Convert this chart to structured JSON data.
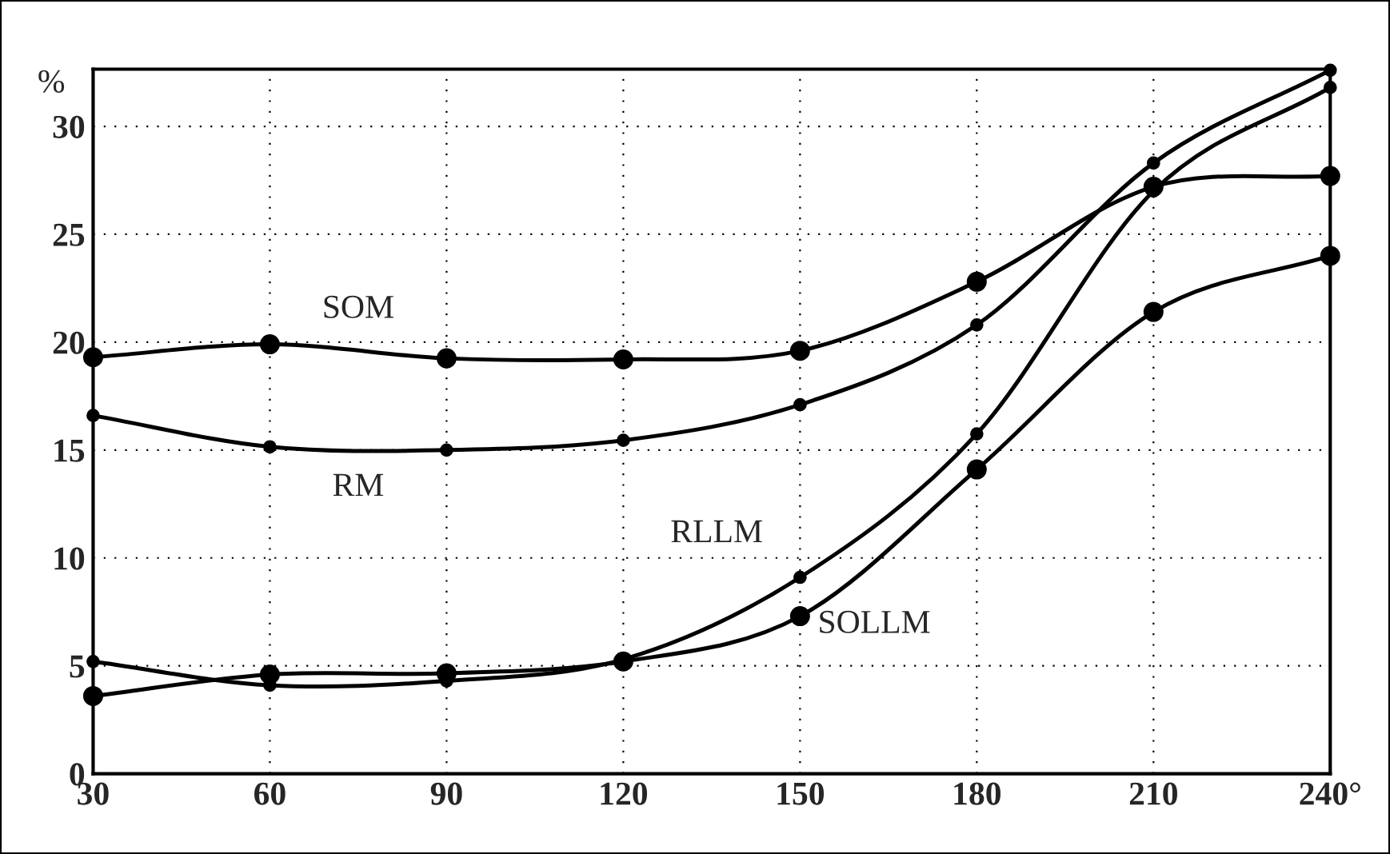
{
  "chart_data": {
    "type": "line",
    "ylabel": "%",
    "x": [
      30,
      60,
      90,
      120,
      150,
      180,
      210,
      240
    ],
    "series": [
      {
        "name": "SOM",
        "color": "#000000",
        "marker": "circle",
        "values": [
          19.3,
          19.9,
          19.25,
          19.2,
          19.6,
          22.8,
          27.2,
          27.7
        ]
      },
      {
        "name": "RM",
        "color": "#000000",
        "marker": "circle",
        "values": [
          16.6,
          15.15,
          15.0,
          15.45,
          17.1,
          20.8,
          28.3,
          32.6
        ]
      },
      {
        "name": "RLLM",
        "color": "#000000",
        "marker": "circle",
        "values": [
          5.2,
          4.1,
          4.3,
          5.3,
          9.1,
          15.75,
          27.0,
          31.8
        ]
      },
      {
        "name": "SOLLM",
        "color": "#000000",
        "marker": "circle",
        "values": [
          3.6,
          4.6,
          4.65,
          5.2,
          7.3,
          14.1,
          21.4,
          24.0
        ]
      }
    ],
    "xlim": [
      30,
      240
    ],
    "ylim": [
      0,
      32.65
    ],
    "xticks": [
      30,
      60,
      90,
      120,
      150,
      180,
      210,
      {
        "value": 240,
        "label": "240°"
      }
    ],
    "yticks": [
      0,
      5,
      10,
      15,
      20,
      25,
      30
    ],
    "grid": true,
    "line_style": "solid"
  }
}
